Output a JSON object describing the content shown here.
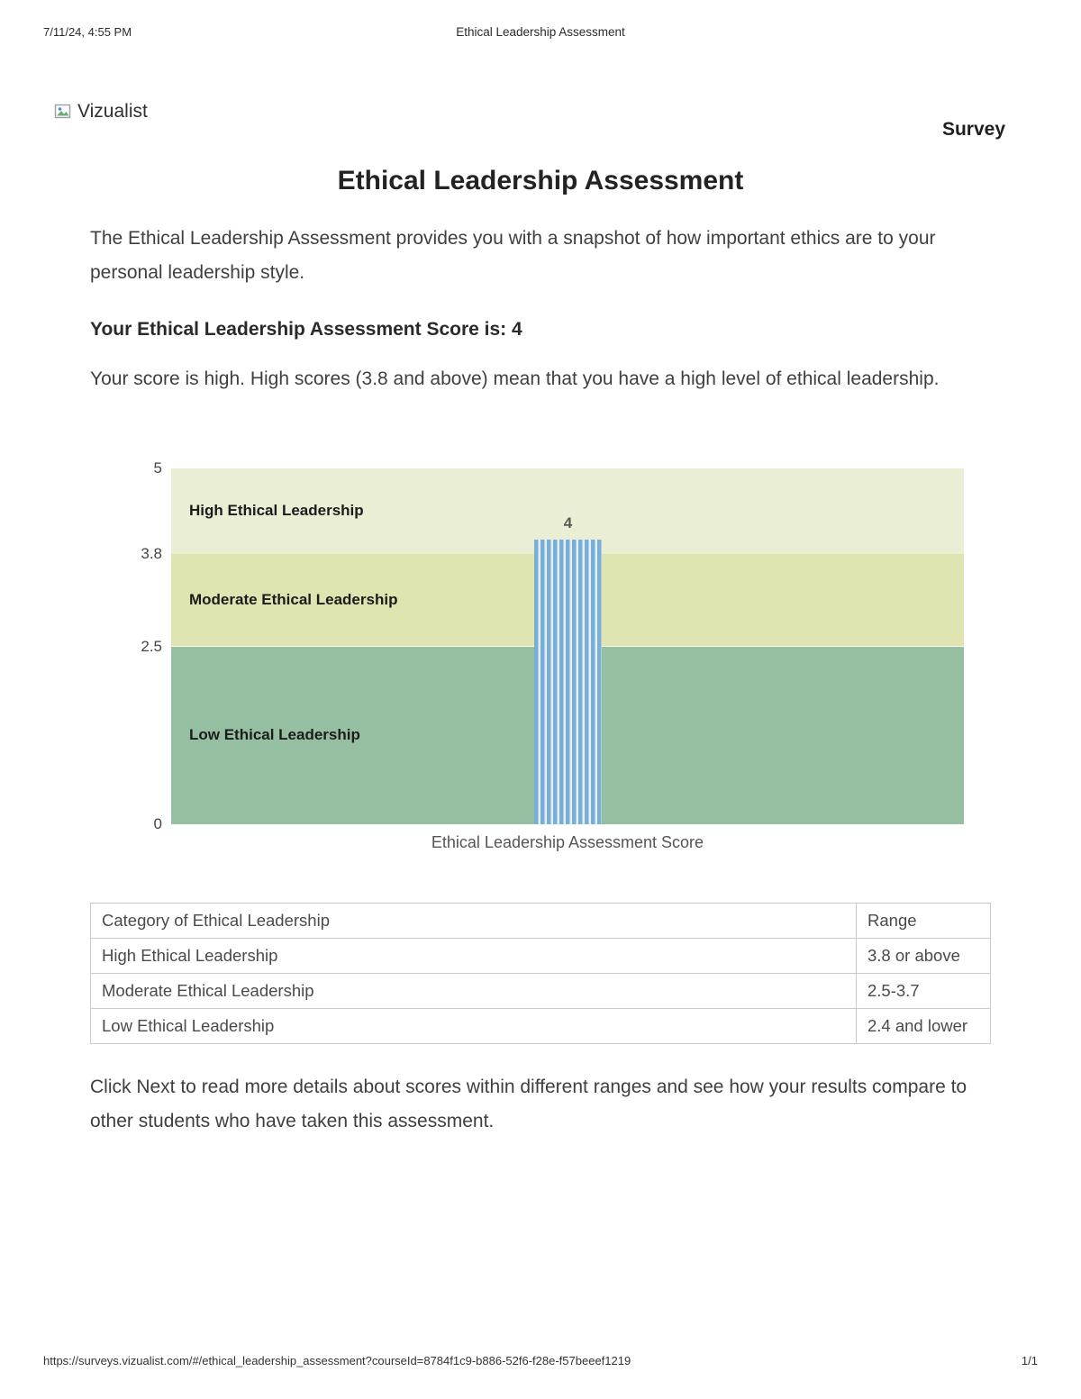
{
  "print_header": {
    "timestamp": "7/11/24, 4:55 PM",
    "title": "Ethical Leadership Assessment"
  },
  "header": {
    "logo_alt": "Vizualist",
    "survey_label": "Survey"
  },
  "main": {
    "title": "Ethical Leadership Assessment",
    "intro": "The Ethical Leadership Assessment provides you with a snapshot of how important ethics are to your personal leadership style.",
    "score_line": "Your Ethical Leadership Assessment Score is: 4",
    "score_explanation": "Your score is high. High scores (3.8 and above) mean that you have a high level of ethical leadership.",
    "next_instructions": "Click Next to read more details about scores within different ranges and see how your results compare to other students who have taken this assessment."
  },
  "chart_data": {
    "type": "bar",
    "xlabel": "Ethical Leadership Assessment Score",
    "ylim": [
      0,
      5
    ],
    "y_ticks": [
      5,
      3.8,
      2.5,
      0
    ],
    "score_value": 4,
    "score_label": "4",
    "bands": [
      {
        "label": "High Ethical Leadership",
        "from": 3.8,
        "to": 5,
        "color": "#e9eed5"
      },
      {
        "label": "Moderate Ethical Leadership",
        "from": 2.5,
        "to": 3.8,
        "color": "#dfe4b0"
      },
      {
        "label": "Low Ethical Leadership",
        "from": 0,
        "to": 2.5,
        "color": "#95bfa0"
      }
    ],
    "bar_color": "#7aafd5",
    "bar_stripe_color": "#e3eef7",
    "grid": false,
    "legend": "none"
  },
  "table": {
    "headers": [
      "Category of Ethical Leadership",
      "Range"
    ],
    "rows": [
      [
        "High Ethical Leadership",
        "3.8 or above"
      ],
      [
        "Moderate Ethical Leadership",
        "2.5-3.7"
      ],
      [
        "Low Ethical Leadership",
        "2.4 and lower"
      ]
    ]
  },
  "print_footer": {
    "url": "https://surveys.vizualist.com/#/ethical_leadership_assessment?courseId=8784f1c9-b886-52f6-f28e-f57beeef1219",
    "page": "1/1"
  }
}
